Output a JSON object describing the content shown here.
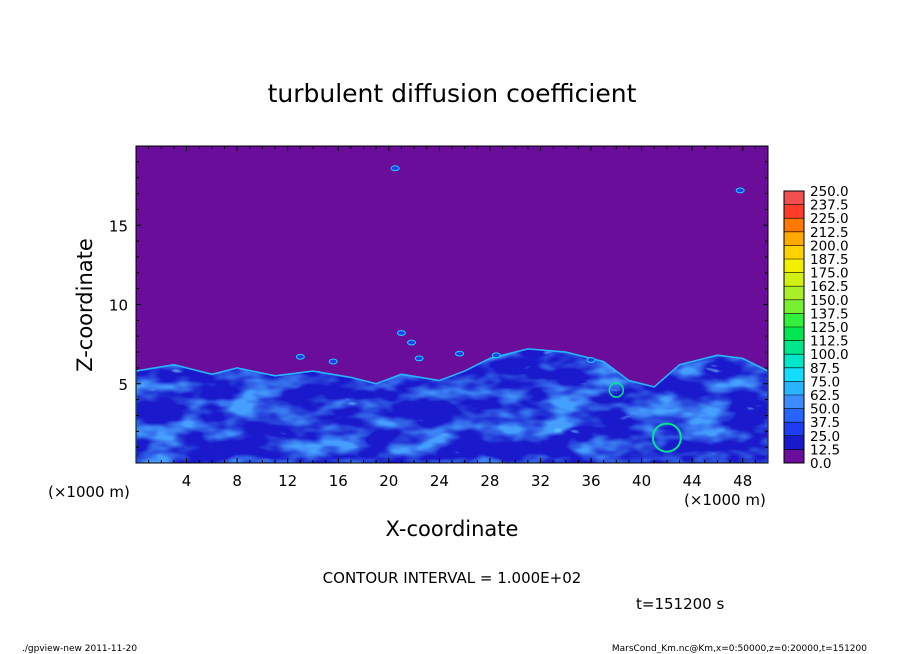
{
  "title": "turbulent diffusion coefficient",
  "contour_interval": "CONTOUR INTERVAL = 1.000E+02",
  "time_label": "t=151200 s",
  "footer_left": "./gpview-new  2011-11-20",
  "footer_right": "MarsCond_Km.nc@Km,x=0:50000,z=0:20000,t=151200",
  "chart_data": {
    "type": "heatmap",
    "title": "turbulent diffusion coefficient",
    "xlabel": "X-coordinate",
    "ylabel": "Z-coordinate",
    "x_units": "(×1000 m)",
    "x_unit_note_left": "(×1000 m)",
    "x_unit_note_right": "(×1000 m)",
    "xlim": [
      0,
      50
    ],
    "ylim": [
      0,
      20
    ],
    "x_ticks": [
      4,
      8,
      12,
      16,
      20,
      24,
      28,
      32,
      36,
      40,
      44,
      48
    ],
    "y_ticks": [
      5,
      10,
      15
    ],
    "colorbar": {
      "levels": [
        "0.0",
        "12.5",
        "25.0",
        "37.5",
        "50.0",
        "62.5",
        "75.0",
        "87.5",
        "100.0",
        "112.5",
        "125.0",
        "137.5",
        "150.0",
        "162.5",
        "175.0",
        "187.5",
        "200.0",
        "212.5",
        "225.0",
        "237.5",
        "250.0"
      ],
      "colors": [
        "#6a0d9a",
        "#1a1acc",
        "#1e3cf0",
        "#2864ff",
        "#3c8cff",
        "#28b4ff",
        "#14dcff",
        "#00e6c8",
        "#00e68c",
        "#00e650",
        "#32f03c",
        "#78f032",
        "#aaf028",
        "#d2f014",
        "#f0f000",
        "#ffd200",
        "#ffaa00",
        "#ff7800",
        "#ff3c28",
        "#f05050",
        "#f08c8c"
      ]
    },
    "background_level": "0.0",
    "turbulent_layer_top_z": 6,
    "grid": false
  }
}
